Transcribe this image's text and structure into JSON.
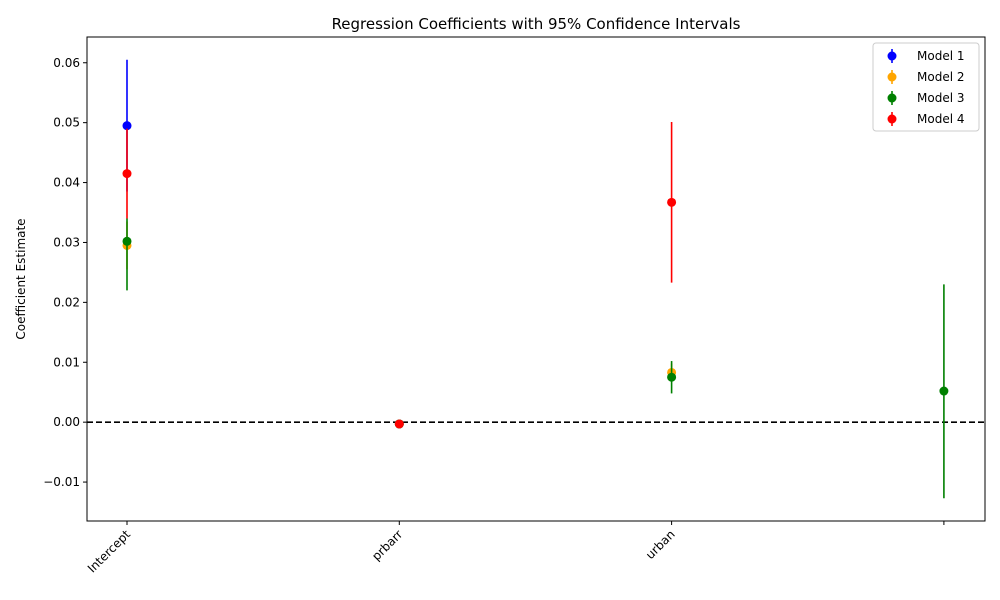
{
  "chart_data": {
    "type": "scatter",
    "title": "Regression Coefficients with 95% Confidence Intervals",
    "xlabel": "",
    "ylabel": "Coefficient Estimate",
    "categories": [
      "Intercept",
      "prbarr",
      "urban",
      ""
    ],
    "ylim": [
      -0.0165,
      0.0643
    ],
    "yticks": [
      -0.01,
      0.0,
      0.01,
      0.02,
      0.03,
      0.04,
      0.05,
      0.06
    ],
    "ytick_labels": [
      "−0.01",
      "0.00",
      "0.01",
      "0.02",
      "0.03",
      "0.04",
      "0.05",
      "0.06"
    ],
    "reference_line": {
      "y": 0,
      "style": "dashed",
      "color": "#000000"
    },
    "legend_position": "top-right",
    "series": [
      {
        "name": "Model 1",
        "color": "#0000ff",
        "points": [
          {
            "category": "Intercept",
            "estimate": 0.0495,
            "ci_low": 0.0385,
            "ci_high": 0.0605
          },
          {
            "category": "prbarr",
            "estimate": -0.0003,
            "ci_low": -0.0006,
            "ci_high": 0.0
          }
        ]
      },
      {
        "name": "Model 2",
        "color": "#ffa500",
        "points": [
          {
            "category": "Intercept",
            "estimate": 0.0295,
            "ci_low": 0.0255,
            "ci_high": 0.0335
          },
          {
            "category": "prbarr",
            "estimate": -0.0003,
            "ci_low": -0.0006,
            "ci_high": 0.0
          },
          {
            "category": "urban",
            "estimate": 0.0083,
            "ci_low": 0.0068,
            "ci_high": 0.0098
          }
        ]
      },
      {
        "name": "Model 3",
        "color": "#008000",
        "points": [
          {
            "category": "Intercept",
            "estimate": 0.0302,
            "ci_low": 0.022,
            "ci_high": 0.034
          },
          {
            "category": "prbarr",
            "estimate": -0.0003,
            "ci_low": -0.0006,
            "ci_high": 0.0
          },
          {
            "category": "urban",
            "estimate": 0.0075,
            "ci_low": 0.0048,
            "ci_high": 0.0102
          },
          {
            "category": "",
            "estimate": 0.0052,
            "ci_low": -0.0127,
            "ci_high": 0.023
          }
        ]
      },
      {
        "name": "Model 4",
        "color": "#ff0000",
        "points": [
          {
            "category": "Intercept",
            "estimate": 0.0415,
            "ci_low": 0.034,
            "ci_high": 0.049
          },
          {
            "category": "prbarr",
            "estimate": -0.0003,
            "ci_low": -0.0006,
            "ci_high": 0.0
          },
          {
            "category": "urban",
            "estimate": 0.0367,
            "ci_low": 0.0233,
            "ci_high": 0.0501
          }
        ]
      }
    ]
  }
}
